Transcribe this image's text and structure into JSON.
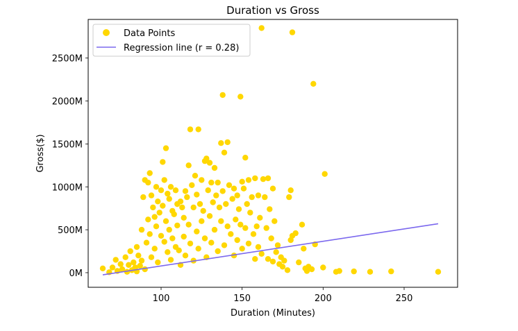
{
  "chart_data": {
    "type": "scatter",
    "title": "Duration vs Gross",
    "xlabel": "Duration (Minutes)",
    "ylabel": "Gross($)",
    "xlim": [
      55,
      283
    ],
    "ylim": [
      -170,
      2950
    ],
    "xticks": [
      100,
      150,
      200,
      250
    ],
    "xtick_labels": [
      "100",
      "150",
      "200",
      "250"
    ],
    "yticks": [
      0,
      500,
      1000,
      1500,
      2000,
      2500
    ],
    "ytick_labels": [
      "0M",
      "500M",
      "1000M",
      "1500M",
      "2000M",
      "2500M"
    ],
    "grid": false,
    "legend_position": "top-left",
    "colors": {
      "points": "#FFD700",
      "line": "#7B68EE"
    },
    "series": [
      {
        "name": "Data Points",
        "type": "scatter",
        "points": [
          [
            64,
            50
          ],
          [
            68,
            5
          ],
          [
            70,
            60
          ],
          [
            72,
            150
          ],
          [
            73,
            20
          ],
          [
            75,
            100
          ],
          [
            76,
            40
          ],
          [
            78,
            180
          ],
          [
            79,
            10
          ],
          [
            80,
            90
          ],
          [
            81,
            250
          ],
          [
            82,
            30
          ],
          [
            83,
            120
          ],
          [
            84,
            60
          ],
          [
            85,
            300
          ],
          [
            85,
            15
          ],
          [
            86,
            200
          ],
          [
            87,
            80
          ],
          [
            88,
            500
          ],
          [
            88,
            140
          ],
          [
            89,
            880
          ],
          [
            90,
            1080
          ],
          [
            90,
            40
          ],
          [
            91,
            350
          ],
          [
            92,
            1050
          ],
          [
            92,
            620
          ],
          [
            93,
            1160
          ],
          [
            93,
            450
          ],
          [
            94,
            900
          ],
          [
            94,
            180
          ],
          [
            95,
            760
          ],
          [
            96,
            650
          ],
          [
            96,
            280
          ],
          [
            97,
            1000
          ],
          [
            97,
            540
          ],
          [
            98,
            830
          ],
          [
            98,
            120
          ],
          [
            99,
            700
          ],
          [
            100,
            960
          ],
          [
            100,
            430
          ],
          [
            101,
            1290
          ],
          [
            101,
            780
          ],
          [
            102,
            1080
          ],
          [
            102,
            360
          ],
          [
            103,
            1450
          ],
          [
            103,
            600
          ],
          [
            104,
            920
          ],
          [
            104,
            240
          ],
          [
            105,
            860
          ],
          [
            105,
            500
          ],
          [
            106,
            1000
          ],
          [
            106,
            150
          ],
          [
            107,
            720
          ],
          [
            107,
            400
          ],
          [
            108,
            680
          ],
          [
            109,
            960
          ],
          [
            109,
            300
          ],
          [
            110,
            800
          ],
          [
            110,
            550
          ],
          [
            111,
            260
          ],
          [
            112,
            830
          ],
          [
            112,
            90
          ],
          [
            113,
            760
          ],
          [
            114,
            640
          ],
          [
            114,
            420
          ],
          [
            115,
            950
          ],
          [
            115,
            200
          ],
          [
            116,
            880
          ],
          [
            117,
            1250
          ],
          [
            117,
            560
          ],
          [
            118,
            1670
          ],
          [
            118,
            340
          ],
          [
            119,
            1020
          ],
          [
            120,
            760
          ],
          [
            120,
            140
          ],
          [
            121,
            1130
          ],
          [
            122,
            910
          ],
          [
            122,
            480
          ],
          [
            123,
            1670
          ],
          [
            123,
            280
          ],
          [
            124,
            800
          ],
          [
            125,
            1080
          ],
          [
            125,
            600
          ],
          [
            126,
            720
          ],
          [
            127,
            1300
          ],
          [
            127,
            400
          ],
          [
            128,
            1330
          ],
          [
            128,
            180
          ],
          [
            129,
            960
          ],
          [
            130,
            1280
          ],
          [
            130,
            660
          ],
          [
            131,
            1050
          ],
          [
            131,
            350
          ],
          [
            132,
            820
          ],
          [
            133,
            1220
          ],
          [
            133,
            500
          ],
          [
            134,
            900
          ],
          [
            135,
            1050
          ],
          [
            135,
            250
          ],
          [
            136,
            760
          ],
          [
            137,
            1510
          ],
          [
            137,
            600
          ],
          [
            138,
            2070
          ],
          [
            138,
            950
          ],
          [
            139,
            1400
          ],
          [
            139,
            320
          ],
          [
            140,
            800
          ],
          [
            141,
            1520
          ],
          [
            141,
            540
          ],
          [
            142,
            1020
          ],
          [
            143,
            450
          ],
          [
            144,
            860
          ],
          [
            145,
            980
          ],
          [
            145,
            200
          ],
          [
            146,
            620
          ],
          [
            147,
            900
          ],
          [
            147,
            380
          ],
          [
            148,
            740
          ],
          [
            149,
            2050
          ],
          [
            149,
            560
          ],
          [
            150,
            1060
          ],
          [
            150,
            280
          ],
          [
            151,
            980
          ],
          [
            152,
            1340
          ],
          [
            152,
            520
          ],
          [
            153,
            800
          ],
          [
            154,
            1080
          ],
          [
            154,
            340
          ],
          [
            155,
            700
          ],
          [
            156,
            880
          ],
          [
            157,
            450
          ],
          [
            158,
            1100
          ],
          [
            158,
            160
          ],
          [
            159,
            540
          ],
          [
            160,
            900
          ],
          [
            160,
            300
          ],
          [
            161,
            640
          ],
          [
            162,
            2850
          ],
          [
            162,
            220
          ],
          [
            163,
            1090
          ],
          [
            164,
            880
          ],
          [
            165,
            520
          ],
          [
            166,
            1100
          ],
          [
            166,
            160
          ],
          [
            167,
            740
          ],
          [
            168,
            400
          ],
          [
            169,
            980
          ],
          [
            169,
            130
          ],
          [
            170,
            600
          ],
          [
            171,
            240
          ],
          [
            172,
            320
          ],
          [
            173,
            100
          ],
          [
            174,
            180
          ],
          [
            175,
            70
          ],
          [
            176,
            140
          ],
          [
            178,
            30
          ],
          [
            179,
            880
          ],
          [
            180,
            960
          ],
          [
            180,
            380
          ],
          [
            181,
            2800
          ],
          [
            181,
            430
          ],
          [
            183,
            460
          ],
          [
            185,
            120
          ],
          [
            187,
            560
          ],
          [
            188,
            280
          ],
          [
            189,
            50
          ],
          [
            190,
            20
          ],
          [
            191,
            70
          ],
          [
            193,
            40
          ],
          [
            194,
            2200
          ],
          [
            195,
            330
          ],
          [
            200,
            60
          ],
          [
            201,
            1150
          ],
          [
            208,
            10
          ],
          [
            210,
            20
          ],
          [
            219,
            15
          ],
          [
            229,
            10
          ],
          [
            242,
            15
          ],
          [
            271,
            10
          ]
        ]
      },
      {
        "name": "Regression line (r = 0.28)",
        "type": "line",
        "x": [
          64,
          271
        ],
        "y": [
          -25,
          570
        ]
      }
    ]
  }
}
